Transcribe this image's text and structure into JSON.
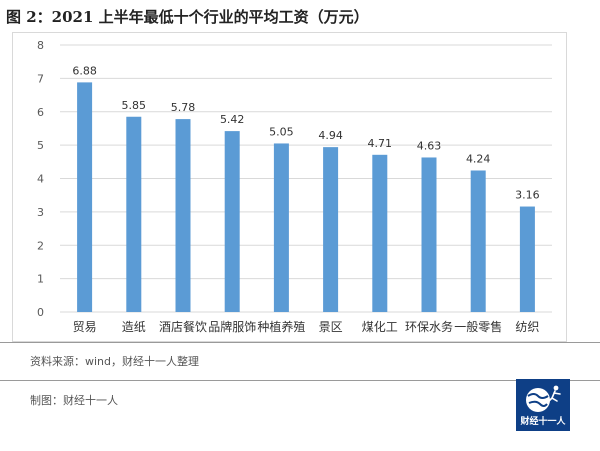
{
  "figure": {
    "title": "图 2：2021 上半年最低十个行业的平均工资（万元）"
  },
  "chart_data": {
    "type": "bar",
    "categories": [
      "贸易",
      "造纸",
      "酒店餐饮",
      "品牌服饰",
      "种植养殖",
      "景区",
      "煤化工",
      "环保水务",
      "一般零售",
      "纺织"
    ],
    "values": [
      6.88,
      5.85,
      5.78,
      5.42,
      5.05,
      4.94,
      4.71,
      4.63,
      4.24,
      3.16
    ],
    "value_labels": [
      "6.88",
      "5.85",
      "5.78",
      "5.42",
      "5.05",
      "4.94",
      "4.71",
      "4.63",
      "4.24",
      "3.16"
    ],
    "ylim": [
      0,
      8
    ],
    "yticks": [
      0,
      1,
      2,
      3,
      4,
      5,
      6,
      7,
      8
    ],
    "grid": true,
    "legend": "none",
    "bar_color": "#5b9bd5",
    "grid_color": "#d9d9d9"
  },
  "source": "资料来源：wind，财经十一人整理",
  "credit": "制图：财经十一人",
  "logo": {
    "text": "财经十一人",
    "icon": "globe-runner-icon",
    "bg_color": "#0e3f86"
  }
}
